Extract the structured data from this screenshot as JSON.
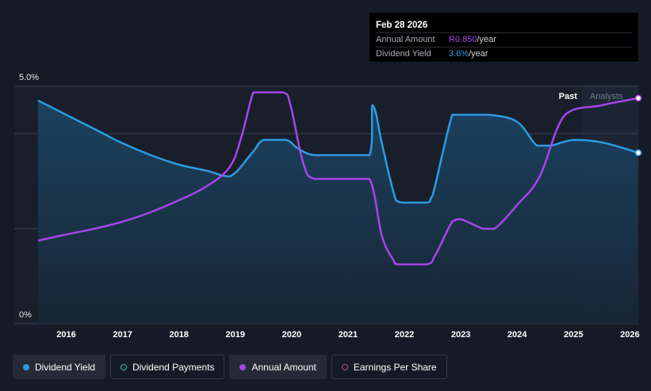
{
  "colors": {
    "background": "#151b26",
    "dividend_yield": "#2d9be3",
    "annual_amount": "#a545e8",
    "dividend_payments": "#2ec4b6",
    "earnings_per_share": "#c2418a"
  },
  "tooltip": {
    "date": "Feb 28 2026",
    "rows": [
      {
        "label": "Annual Amount",
        "value": "R0.850",
        "unit": "/year",
        "color": "#a545e8"
      },
      {
        "label": "Dividend Yield",
        "value": "3.6%",
        "unit": "/year",
        "color": "#2d9be3"
      }
    ]
  },
  "regions": {
    "past": "Past",
    "analysts": "Analysts"
  },
  "legend": [
    {
      "label": "Dividend Yield",
      "icon": "filled-dot",
      "color": "#2d9be3",
      "active": true
    },
    {
      "label": "Dividend Payments",
      "icon": "hollow-dot",
      "color": "#2ec4b6",
      "active": false
    },
    {
      "label": "Annual Amount",
      "icon": "filled-dot",
      "color": "#a545e8",
      "active": true
    },
    {
      "label": "Earnings Per Share",
      "icon": "hollow-dot",
      "color": "#c2418a",
      "active": false
    }
  ],
  "chart_data": {
    "type": "line",
    "ylim": [
      0,
      5.0
    ],
    "y_tick_labels": [
      "5.0%",
      "0%"
    ],
    "x_tick_labels": [
      "2016",
      "2017",
      "2018",
      "2019",
      "2020",
      "2021",
      "2022",
      "2023",
      "2024",
      "2025",
      "2026"
    ],
    "xlim": [
      2015.5,
      2026.15
    ],
    "forecast_start": 2025.15,
    "grid": true,
    "legend_position": "bottom",
    "series": [
      {
        "name": "Dividend Yield",
        "unit": "%",
        "x": [
          2015.5,
          2016.0,
          2016.5,
          2017.0,
          2017.5,
          2018.0,
          2018.5,
          2018.9,
          2019.3,
          2019.5,
          2019.9,
          2020.1,
          2020.4,
          2021.0,
          2021.38,
          2021.43,
          2021.5,
          2021.6,
          2021.85,
          2022.0,
          2022.4,
          2022.5,
          2022.85,
          2023.0,
          2023.5,
          2024.0,
          2024.35,
          2024.6,
          2025.0,
          2025.5,
          2026.15
        ],
        "values": [
          4.7,
          4.4,
          4.1,
          3.8,
          3.55,
          3.35,
          3.22,
          3.1,
          3.6,
          3.87,
          3.87,
          3.7,
          3.55,
          3.55,
          3.55,
          4.6,
          4.4,
          3.8,
          2.6,
          2.55,
          2.55,
          2.7,
          4.4,
          4.4,
          4.4,
          4.25,
          3.75,
          3.75,
          3.87,
          3.82,
          3.6
        ]
      },
      {
        "name": "Annual Amount",
        "unit": "% (scaled)",
        "x": [
          2015.5,
          2016.0,
          2016.5,
          2017.0,
          2017.5,
          2018.0,
          2018.5,
          2018.9,
          2019.1,
          2019.32,
          2019.45,
          2019.85,
          2019.98,
          2020.2,
          2020.4,
          2021.0,
          2021.38,
          2021.6,
          2021.8,
          2021.9,
          2022.4,
          2022.55,
          2022.85,
          2023.0,
          2023.4,
          2023.6,
          2024.0,
          2024.4,
          2024.85,
          2025.5,
          2026.15
        ],
        "values": [
          1.75,
          1.88,
          2.0,
          2.15,
          2.35,
          2.6,
          2.9,
          3.3,
          3.9,
          4.87,
          4.87,
          4.87,
          4.6,
          3.4,
          3.05,
          3.05,
          3.05,
          1.85,
          1.35,
          1.25,
          1.25,
          1.45,
          2.15,
          2.2,
          2.0,
          2.0,
          2.5,
          3.1,
          4.4,
          4.6,
          4.75
        ]
      }
    ]
  }
}
